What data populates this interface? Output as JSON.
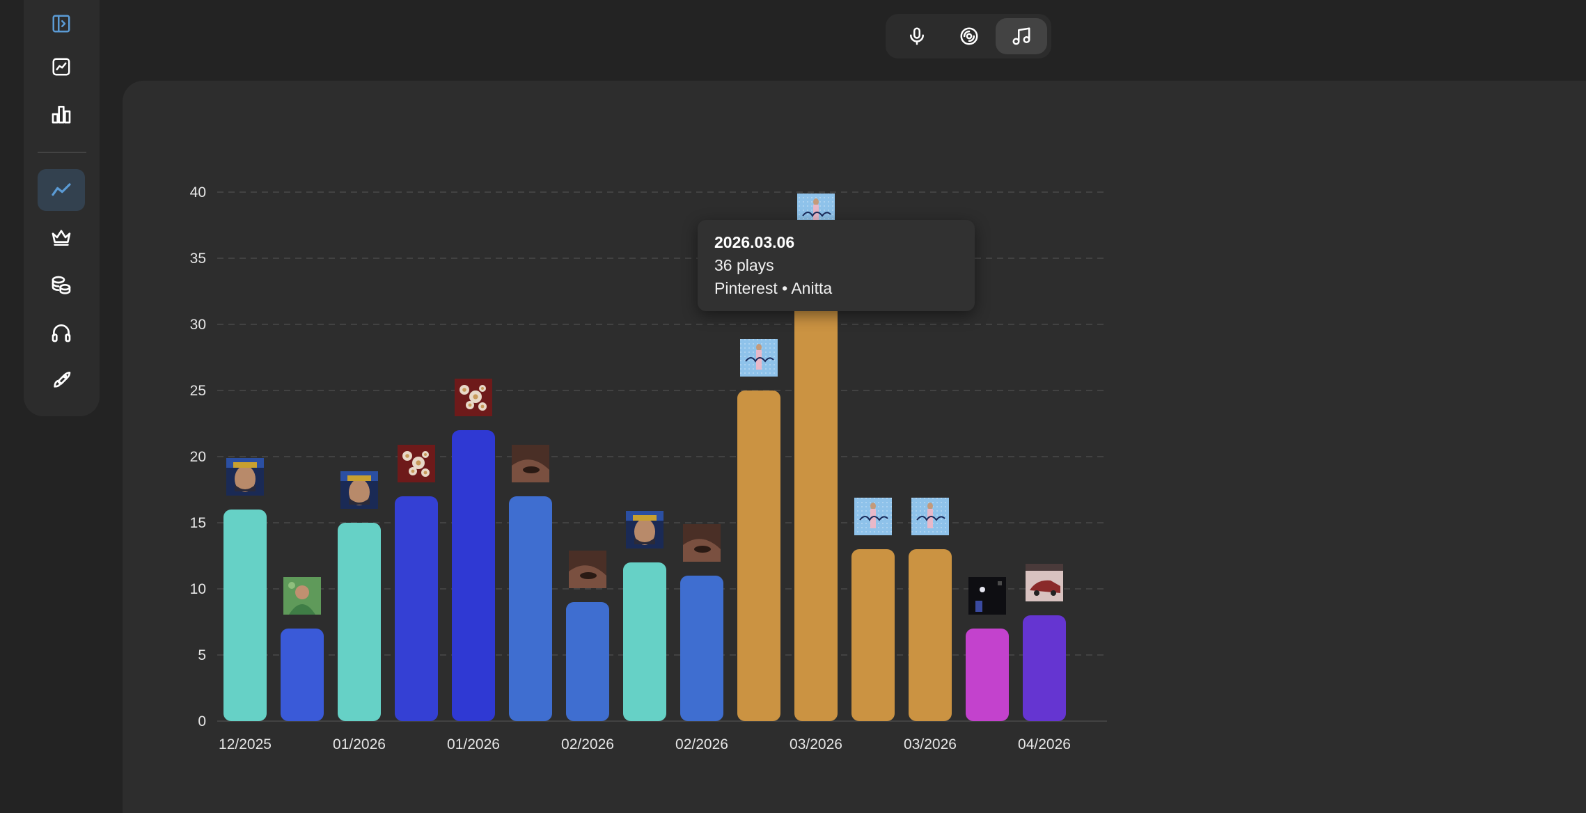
{
  "sidebar": {
    "items": [
      {
        "icon": "sidebar-toggle-icon",
        "active": false
      },
      {
        "icon": "line-chart-square-icon",
        "active": false
      },
      {
        "icon": "bar-chart-icon",
        "active": false
      },
      {
        "icon": "trend-line-icon",
        "active": true
      },
      {
        "icon": "crown-icon",
        "active": false
      },
      {
        "icon": "coins-icon",
        "active": false
      },
      {
        "icon": "headphones-icon",
        "active": false
      },
      {
        "icon": "rocket-icon",
        "active": false
      }
    ]
  },
  "topbar": {
    "buttons": [
      {
        "icon": "microphone-icon",
        "active": false
      },
      {
        "icon": "disc-icon",
        "active": false
      },
      {
        "icon": "music-note-icon",
        "active": true
      }
    ]
  },
  "tooltip": {
    "date": "2026.03.06",
    "plays": "36 plays",
    "track": "Pinterest • Anitta"
  },
  "colors": {
    "teal": "#66d1c6",
    "blue": "#3f6ed0",
    "royal": "#3440d4",
    "indigo": "#2f39d3",
    "orange": "#cb9342",
    "magenta": "#c342cd",
    "purple": "#6535d1",
    "accent": "#5b9bd5"
  },
  "chart_data": {
    "type": "bar",
    "ylim": [
      0,
      40
    ],
    "yticks": [
      "0",
      "5",
      "10",
      "15",
      "20",
      "25",
      "30",
      "35",
      "40"
    ],
    "grid": true,
    "xticks": [
      "12/2025",
      "01/2026",
      "01/2026",
      "02/2026",
      "02/2026",
      "03/2026",
      "03/2026",
      "04/2026"
    ],
    "values": [
      16,
      7,
      15,
      17,
      22,
      17,
      9,
      12,
      11,
      25,
      36,
      13,
      13,
      7,
      8
    ],
    "bar_colors": [
      "#66d1c6",
      "#3a5ad8",
      "#66d1c6",
      "#3440d4",
      "#2f39d3",
      "#3f6ed0",
      "#3f6ed0",
      "#66d1c6",
      "#3f6ed0",
      "#cb9342",
      "#cb9342",
      "#cb9342",
      "#cb9342",
      "#c342cd",
      "#6535d1"
    ],
    "covers": [
      "cover-portrait",
      "cover-green",
      "cover-portrait",
      "cover-flowers",
      "cover-flowers",
      "cover-brown",
      "cover-brown",
      "cover-portrait",
      "cover-brown",
      "cover-pinterest",
      "cover-pinterest",
      "cover-pinterest",
      "cover-pinterest",
      "cover-night",
      "cover-car"
    ]
  }
}
